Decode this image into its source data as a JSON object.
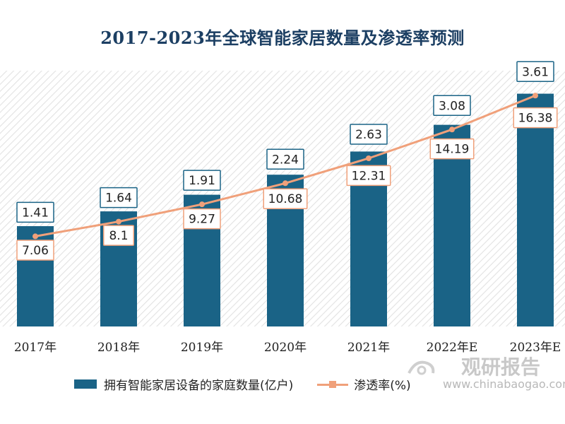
{
  "chart_data": {
    "type": "bar",
    "title": "2017-2023年全球智能家居数量及渗透率预测",
    "categories": [
      "2017年",
      "2018年",
      "2019年",
      "2020年",
      "2021年",
      "2022年E",
      "2023年E"
    ],
    "series": [
      {
        "name": "拥有智能家居设备的家庭数量(亿户)",
        "type": "bar",
        "values": [
          7.06,
          8.1,
          9.27,
          10.68,
          12.31,
          14.19,
          16.38
        ],
        "labels": [
          "7.06",
          "8.1",
          "9.27",
          "10.68",
          "12.31",
          "14.19",
          "16.38"
        ]
      },
      {
        "name": "渗透率(%)",
        "type": "line",
        "values": [
          1.41,
          1.64,
          1.91,
          2.24,
          2.63,
          3.08,
          3.61
        ],
        "labels": [
          "1.41",
          "1.64",
          "1.91",
          "2.24",
          "2.63",
          "3.08",
          "3.61"
        ]
      }
    ],
    "ylim_bar": [
      0,
      18
    ],
    "ylim_line": [
      0,
      4
    ],
    "grid": false,
    "legend": "bottom"
  },
  "colors": {
    "bar": "#1a6386",
    "line": "#f0a07a",
    "title": "#1c3f63",
    "bar_label_border": "#f0a07a",
    "line_label_border": "#1a6386"
  },
  "watermark": {
    "main": "观研报告",
    "sub": "www.chinabaogao.com"
  }
}
